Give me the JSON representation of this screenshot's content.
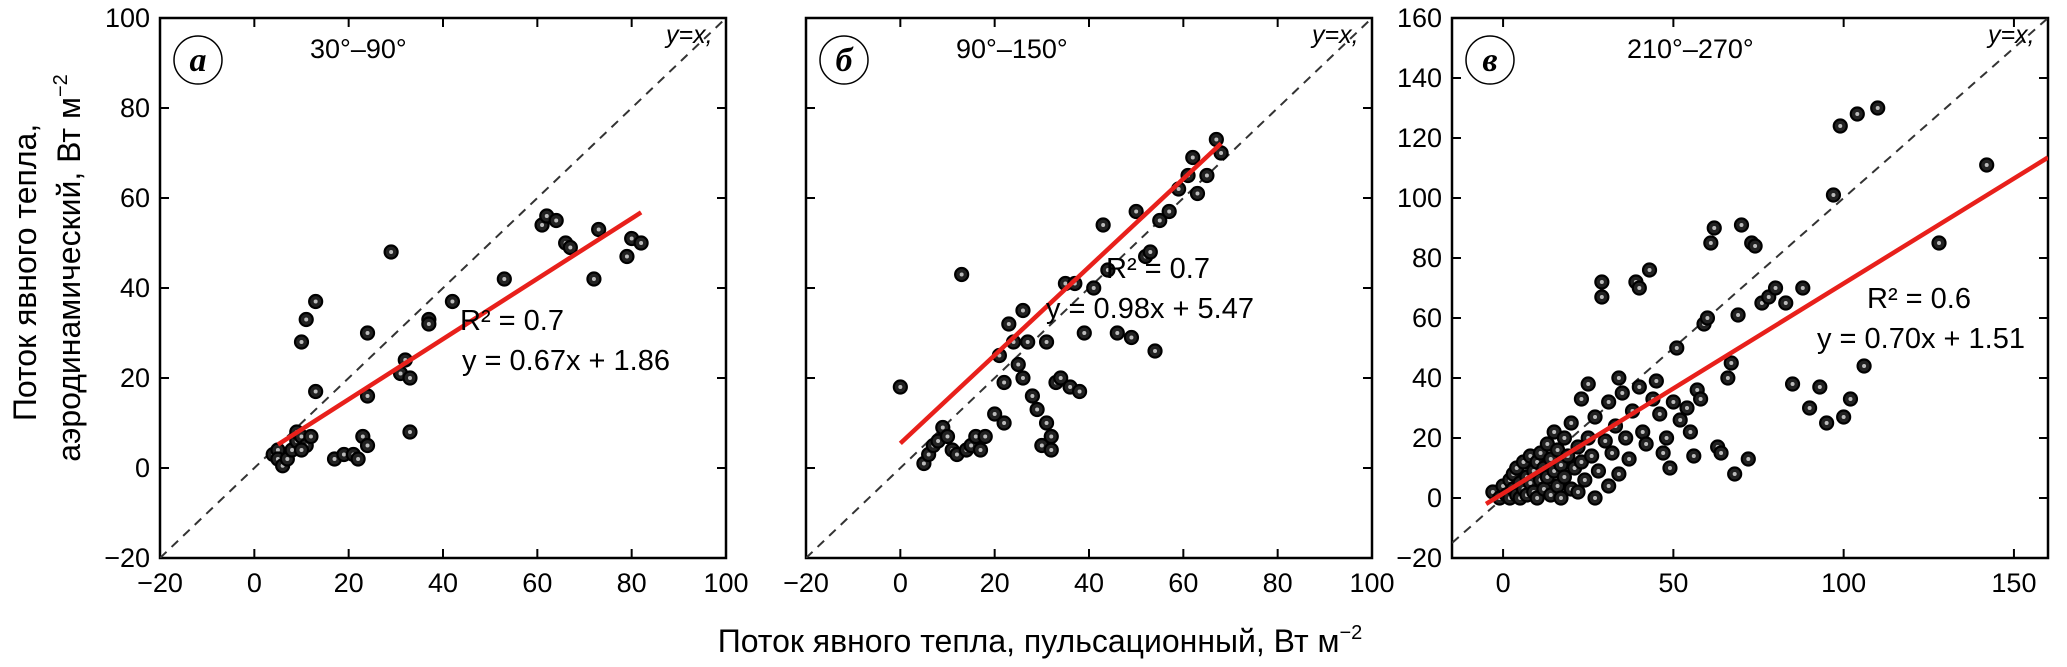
{
  "figure": {
    "ylabel_line1": "Поток явного тепла,",
    "ylabel_line2": "аэродинамический, Вт м",
    "ylabel_sup": "−2",
    "xlabel": "Поток явного тепла, пульсационный, Вт м",
    "xlabel_sup": "−2"
  },
  "chart_data": [
    {
      "type": "scatter",
      "panel_letter": "а",
      "direction_range": "30°–90°",
      "diagonal_label": "y=x,",
      "xlim": [
        -20,
        100
      ],
      "ylim": [
        -20,
        100
      ],
      "xticks": [
        -20,
        0,
        20,
        40,
        60,
        80,
        100
      ],
      "yticks": [
        -20,
        0,
        20,
        40,
        60,
        80,
        100
      ],
      "r2_label": "R² = 0.7",
      "equation_label": "y = 0.67x + 1.86",
      "fit": {
        "slope": 0.67,
        "intercept": 1.86,
        "x_range": [
          5,
          82
        ]
      },
      "points": [
        [
          4,
          3
        ],
        [
          5,
          4
        ],
        [
          5,
          2
        ],
        [
          6,
          0.5
        ],
        [
          7,
          2
        ],
        [
          8,
          4
        ],
        [
          9,
          6
        ],
        [
          9,
          8
        ],
        [
          10,
          7
        ],
        [
          11,
          5
        ],
        [
          10,
          4
        ],
        [
          12,
          7
        ],
        [
          10,
          28
        ],
        [
          11,
          33
        ],
        [
          13,
          37
        ],
        [
          13,
          17
        ],
        [
          17,
          2
        ],
        [
          19,
          3
        ],
        [
          21,
          3
        ],
        [
          23,
          7
        ],
        [
          22,
          2
        ],
        [
          24,
          5
        ],
        [
          24,
          30
        ],
        [
          24,
          16
        ],
        [
          29,
          48
        ],
        [
          31,
          21
        ],
        [
          32,
          24
        ],
        [
          33,
          20
        ],
        [
          33,
          8
        ],
        [
          37,
          33
        ],
        [
          37,
          32
        ],
        [
          42,
          37
        ],
        [
          53,
          42
        ],
        [
          61,
          54
        ],
        [
          62,
          56
        ],
        [
          64,
          55
        ],
        [
          66,
          50
        ],
        [
          67,
          49
        ],
        [
          72,
          42
        ],
        [
          73,
          53
        ],
        [
          79,
          47
        ],
        [
          80,
          51
        ],
        [
          82,
          50
        ]
      ]
    },
    {
      "type": "scatter",
      "panel_letter": "б",
      "direction_range": "90°–150°",
      "diagonal_label": "y=x,",
      "xlim": [
        -20,
        100
      ],
      "ylim": [
        -20,
        100
      ],
      "xticks": [
        -20,
        0,
        20,
        40,
        60,
        80,
        100
      ],
      "yticks": [],
      "r2_label": "R² = 0.7",
      "equation_label": "y = 0.98x + 5.47",
      "fit": {
        "slope": 0.98,
        "intercept": 5.47,
        "x_range": [
          0,
          68
        ]
      },
      "points": [
        [
          0,
          18
        ],
        [
          5,
          1
        ],
        [
          6,
          3
        ],
        [
          7,
          5
        ],
        [
          8,
          6
        ],
        [
          9,
          9
        ],
        [
          10,
          7
        ],
        [
          11,
          4
        ],
        [
          12,
          3
        ],
        [
          13,
          43
        ],
        [
          14,
          4
        ],
        [
          15,
          5
        ],
        [
          16,
          7
        ],
        [
          17,
          4
        ],
        [
          18,
          7
        ],
        [
          20,
          12
        ],
        [
          21,
          25
        ],
        [
          22,
          19
        ],
        [
          22,
          10
        ],
        [
          23,
          32
        ],
        [
          24,
          28
        ],
        [
          25,
          23
        ],
        [
          26,
          35
        ],
        [
          26,
          20
        ],
        [
          27,
          28
        ],
        [
          28,
          16
        ],
        [
          29,
          13
        ],
        [
          30,
          5
        ],
        [
          31,
          10
        ],
        [
          32,
          4
        ],
        [
          32,
          7
        ],
        [
          31,
          28
        ],
        [
          33,
          19
        ],
        [
          34,
          20
        ],
        [
          35,
          41
        ],
        [
          36,
          18
        ],
        [
          37,
          41
        ],
        [
          38,
          17
        ],
        [
          39,
          30
        ],
        [
          41,
          40
        ],
        [
          43,
          54
        ],
        [
          44,
          44
        ],
        [
          46,
          30
        ],
        [
          49,
          29
        ],
        [
          50,
          57
        ],
        [
          52,
          47
        ],
        [
          53,
          48
        ],
        [
          54,
          26
        ],
        [
          55,
          55
        ],
        [
          57,
          57
        ],
        [
          59,
          62
        ],
        [
          61,
          65
        ],
        [
          62,
          69
        ],
        [
          63,
          61
        ],
        [
          65,
          65
        ],
        [
          67,
          73
        ],
        [
          68,
          70
        ]
      ]
    },
    {
      "type": "scatter",
      "panel_letter": "в",
      "direction_range": "210°–270°",
      "diagonal_label": "y=x,",
      "xlim": [
        -15,
        160
      ],
      "ylim": [
        -20,
        160
      ],
      "xticks": [
        0,
        50,
        100,
        150
      ],
      "yticks": [
        -20,
        0,
        20,
        40,
        60,
        80,
        100,
        120,
        140,
        160
      ],
      "r2_label": "R² = 0.6",
      "equation_label": "y = 0.70x + 1.51",
      "fit": {
        "slope": 0.7,
        "intercept": 1.51,
        "x_range": [
          -5,
          160
        ]
      },
      "points": [
        [
          -3,
          2
        ],
        [
          -1,
          0
        ],
        [
          0,
          4
        ],
        [
          1,
          1
        ],
        [
          2,
          6
        ],
        [
          2,
          0
        ],
        [
          3,
          8
        ],
        [
          3,
          3
        ],
        [
          4,
          1
        ],
        [
          4,
          10
        ],
        [
          5,
          5
        ],
        [
          5,
          0
        ],
        [
          6,
          12
        ],
        [
          6,
          3
        ],
        [
          7,
          7
        ],
        [
          7,
          1
        ],
        [
          8,
          14
        ],
        [
          8,
          5
        ],
        [
          9,
          9
        ],
        [
          9,
          2
        ],
        [
          10,
          12
        ],
        [
          10,
          0
        ],
        [
          11,
          6
        ],
        [
          11,
          15
        ],
        [
          12,
          3
        ],
        [
          12,
          10
        ],
        [
          13,
          18
        ],
        [
          13,
          7
        ],
        [
          14,
          1
        ],
        [
          14,
          13
        ],
        [
          15,
          9
        ],
        [
          15,
          22
        ],
        [
          16,
          4
        ],
        [
          16,
          16
        ],
        [
          17,
          11
        ],
        [
          17,
          0
        ],
        [
          18,
          20
        ],
        [
          18,
          7
        ],
        [
          19,
          14
        ],
        [
          20,
          3
        ],
        [
          20,
          25
        ],
        [
          21,
          10
        ],
        [
          22,
          17
        ],
        [
          22,
          2
        ],
        [
          23,
          33
        ],
        [
          23,
          12
        ],
        [
          24,
          6
        ],
        [
          25,
          20
        ],
        [
          25,
          38
        ],
        [
          26,
          14
        ],
        [
          27,
          0
        ],
        [
          27,
          27
        ],
        [
          28,
          9
        ],
        [
          29,
          72
        ],
        [
          29,
          67
        ],
        [
          30,
          19
        ],
        [
          31,
          32
        ],
        [
          31,
          4
        ],
        [
          32,
          15
        ],
        [
          33,
          24
        ],
        [
          34,
          40
        ],
        [
          34,
          8
        ],
        [
          35,
          35
        ],
        [
          36,
          20
        ],
        [
          37,
          13
        ],
        [
          38,
          29
        ],
        [
          39,
          72
        ],
        [
          40,
          70
        ],
        [
          40,
          37
        ],
        [
          41,
          22
        ],
        [
          42,
          18
        ],
        [
          43,
          76
        ],
        [
          44,
          33
        ],
        [
          45,
          39
        ],
        [
          46,
          28
        ],
        [
          47,
          15
        ],
        [
          48,
          20
        ],
        [
          49,
          10
        ],
        [
          50,
          32
        ],
        [
          51,
          50
        ],
        [
          52,
          26
        ],
        [
          54,
          30
        ],
        [
          55,
          22
        ],
        [
          56,
          14
        ],
        [
          57,
          36
        ],
        [
          58,
          33
        ],
        [
          59,
          58
        ],
        [
          60,
          60
        ],
        [
          61,
          85
        ],
        [
          62,
          90
        ],
        [
          63,
          17
        ],
        [
          64,
          15
        ],
        [
          66,
          40
        ],
        [
          67,
          45
        ],
        [
          68,
          8
        ],
        [
          69,
          61
        ],
        [
          70,
          91
        ],
        [
          72,
          13
        ],
        [
          73,
          85
        ],
        [
          74,
          84
        ],
        [
          76,
          65
        ],
        [
          78,
          67
        ],
        [
          80,
          70
        ],
        [
          83,
          65
        ],
        [
          85,
          38
        ],
        [
          88,
          70
        ],
        [
          90,
          30
        ],
        [
          93,
          37
        ],
        [
          95,
          25
        ],
        [
          97,
          101
        ],
        [
          99,
          124
        ],
        [
          100,
          27
        ],
        [
          102,
          33
        ],
        [
          104,
          128
        ],
        [
          106,
          44
        ],
        [
          110,
          130
        ],
        [
          128,
          85
        ],
        [
          142,
          111
        ]
      ]
    }
  ]
}
